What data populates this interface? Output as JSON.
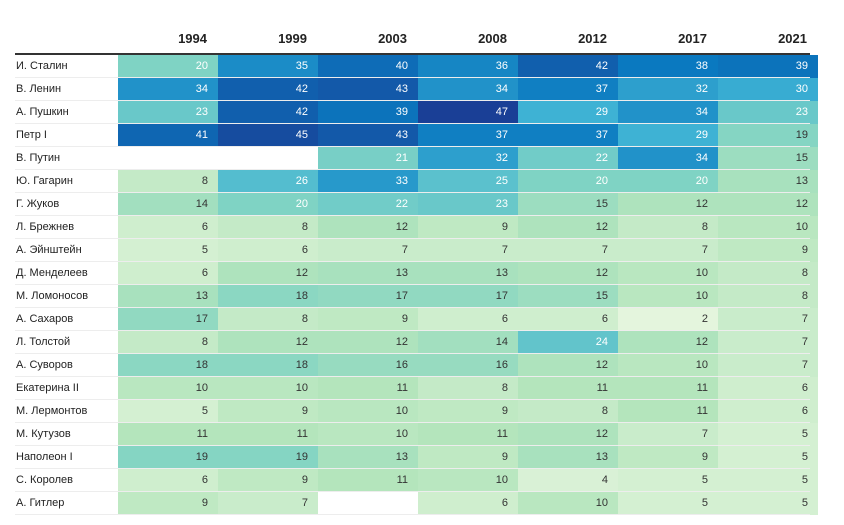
{
  "chart_data": {
    "type": "heatmap",
    "title": "",
    "columns": [
      "1994",
      "1999",
      "2003",
      "2008",
      "2012",
      "2017",
      "2021"
    ],
    "rows": [
      {
        "label": "И. Сталин",
        "values": [
          20,
          35,
          40,
          36,
          42,
          38,
          39
        ]
      },
      {
        "label": "В. Ленин",
        "values": [
          34,
          42,
          43,
          34,
          37,
          32,
          30
        ]
      },
      {
        "label": "А. Пушкин",
        "values": [
          23,
          42,
          39,
          47,
          29,
          34,
          23
        ]
      },
      {
        "label": "Петр I",
        "values": [
          41,
          45,
          43,
          37,
          37,
          29,
          19
        ]
      },
      {
        "label": "В. Путин",
        "values": [
          null,
          null,
          21,
          32,
          22,
          34,
          15
        ]
      },
      {
        "label": "Ю. Гагарин",
        "values": [
          8,
          26,
          33,
          25,
          20,
          20,
          13
        ]
      },
      {
        "label": "Г. Жуков",
        "values": [
          14,
          20,
          22,
          23,
          15,
          12,
          12
        ]
      },
      {
        "label": "Л. Брежнев",
        "values": [
          6,
          8,
          12,
          9,
          12,
          8,
          10
        ]
      },
      {
        "label": "А. Эйнштейн",
        "values": [
          5,
          6,
          7,
          7,
          7,
          7,
          9
        ]
      },
      {
        "label": "Д. Менделеев",
        "values": [
          6,
          12,
          13,
          13,
          12,
          10,
          8
        ]
      },
      {
        "label": "М. Ломоносов",
        "values": [
          13,
          18,
          17,
          17,
          15,
          10,
          8
        ]
      },
      {
        "label": "А. Сахаров",
        "values": [
          17,
          8,
          9,
          6,
          6,
          2,
          7
        ]
      },
      {
        "label": "Л. Толстой",
        "values": [
          8,
          12,
          12,
          14,
          24,
          12,
          7
        ]
      },
      {
        "label": "А. Суворов",
        "values": [
          18,
          18,
          16,
          16,
          12,
          10,
          7
        ]
      },
      {
        "label": "Екатерина II",
        "values": [
          10,
          10,
          11,
          8,
          11,
          11,
          6
        ]
      },
      {
        "label": "М. Лермонтов",
        "values": [
          5,
          9,
          10,
          9,
          8,
          11,
          6
        ]
      },
      {
        "label": "М. Кутузов",
        "values": [
          11,
          11,
          10,
          11,
          12,
          7,
          5
        ]
      },
      {
        "label": "Наполеон I",
        "values": [
          19,
          19,
          13,
          9,
          13,
          9,
          5
        ]
      },
      {
        "label": "С. Королев",
        "values": [
          6,
          9,
          11,
          10,
          4,
          5,
          5
        ]
      },
      {
        "label": "А. Гитлер",
        "values": [
          9,
          7,
          null,
          6,
          10,
          5,
          5
        ]
      }
    ],
    "color_scale": {
      "domain": [
        2,
        47
      ],
      "stops": [
        "#e4f5dd",
        "#b4e5bc",
        "#7fd3c4",
        "#3eb2d4",
        "#0a79c0",
        "#1a3f96"
      ]
    },
    "grid": false,
    "legend": "none"
  }
}
